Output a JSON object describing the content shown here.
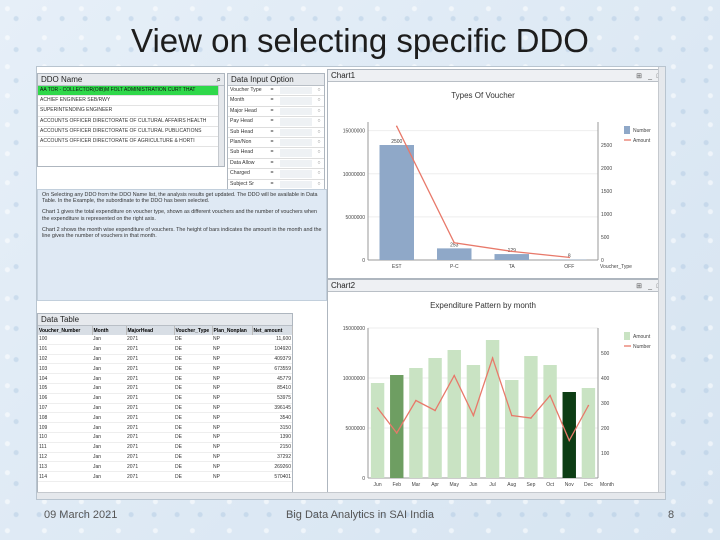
{
  "slide": {
    "title": "View on selecting specific DDO",
    "footer_date": "09 March 2021",
    "footer_center": "Big Data Analytics in SAI India",
    "page_number": "8"
  },
  "ddo_list": {
    "header": "DDO Name",
    "items": [
      "AA TOR - COLLECTOR(OIB)M FOLT ADMINISTRATION CURT THAT",
      "ACHIEF ENGINEER SEB/RWY",
      "SUPERINTENDING ENGINEER",
      "ACCOUNTS OFFICER DIRECTORATE OF CULTURAL AFFAIRS HEALTH",
      "ACCOUNTS OFFICER DIRECTORATE OF CULTURAL PUBLICATIONS",
      "ACCOUNTS OFFICER DIRECTORATE OF AGRICULTURE & HORTI"
    ]
  },
  "data_input": {
    "header": "Data Input Option",
    "rows": [
      {
        "label": "Voucher Type",
        "sep": "="
      },
      {
        "label": "Month",
        "sep": "="
      },
      {
        "label": "Major Head",
        "sep": "="
      },
      {
        "label": "Pay Head",
        "sep": "="
      },
      {
        "label": "Sub Head",
        "sep": "="
      },
      {
        "label": "Plan/Non",
        "sep": "="
      },
      {
        "label": "Sub Head",
        "sep": "="
      },
      {
        "label": "Data Allow",
        "sep": "="
      },
      {
        "label": "Charged",
        "sep": "="
      },
      {
        "label": "Subject Sr",
        "sep": "="
      }
    ]
  },
  "description": {
    "paragraphs": [
      "On Selecting any DDO from the DDO Name list, the analysis results get updated. The DDO will be available in Data Table. In the Example, the subordinate to the DDO has been selected.",
      "Chart 1 gives the total expenditure on voucher type, shown as different vouchers and the number of vouchers when the expenditure is represented on the right axis.",
      "Chart 2 shows the month wise expenditure of vouchers. The height of bars indicates the amount in the month and the line gives the number of vouchers in that month."
    ]
  },
  "data_table": {
    "header": "Data Table",
    "columns": [
      "Voucher_Number",
      "Month",
      "MajorHead",
      "Voucher_Type",
      "Plan_Nonplan",
      "Net_amount"
    ],
    "rows": [
      [
        "100",
        "Jan",
        "2071",
        "DE",
        "NP",
        "11,600"
      ],
      [
        "101",
        "Jan",
        "2071",
        "DE",
        "NP",
        "104920"
      ],
      [
        "102",
        "Jan",
        "2071",
        "DE",
        "NP",
        "409379"
      ],
      [
        "103",
        "Jan",
        "2071",
        "DE",
        "NP",
        "673559"
      ],
      [
        "104",
        "Jan",
        "2071",
        "DE",
        "NP",
        "45779"
      ],
      [
        "105",
        "Jan",
        "2071",
        "DE",
        "NP",
        "85410"
      ],
      [
        "106",
        "Jan",
        "2071",
        "DE",
        "NP",
        "53975"
      ],
      [
        "107",
        "Jan",
        "2071",
        "DE",
        "NP",
        "396145"
      ],
      [
        "108",
        "Jan",
        "2071",
        "DE",
        "NP",
        "3540"
      ],
      [
        "109",
        "Jan",
        "2071",
        "DE",
        "NP",
        "3150"
      ],
      [
        "110",
        "Jan",
        "2071",
        "DE",
        "NP",
        "1390"
      ],
      [
        "111",
        "Jan",
        "2071",
        "DE",
        "NP",
        "2150"
      ],
      [
        "112",
        "Jan",
        "2071",
        "DE",
        "NP",
        "37292"
      ],
      [
        "113",
        "Jan",
        "2071",
        "DE",
        "NP",
        "269260"
      ],
      [
        "114",
        "Jan",
        "2071",
        "DE",
        "NP",
        "570401"
      ]
    ]
  },
  "chart_data": [
    {
      "panel": "Chart1",
      "type": "bar",
      "title": "Types Of Voucher",
      "categories": [
        "EST",
        "P-C",
        "TA",
        "OFF"
      ],
      "series": [
        {
          "name": "Number",
          "kind": "bar",
          "values": [
            2500,
            253,
            129,
            8
          ],
          "color": "#8fa8c8",
          "labels": [
            "2500",
            "253",
            "129",
            "8"
          ]
        },
        {
          "name": "Amount",
          "kind": "line",
          "values": [
            15500000,
            2000000,
            1000000,
            300000
          ],
          "color": "#e8796a"
        }
      ],
      "x_extra_label": "Voucher_Type",
      "ylim_left": [
        0,
        16000000
      ],
      "yticks_left": [
        "0",
        "5000000",
        "10000000",
        "15000000"
      ],
      "ylim_right": [
        0,
        3000
      ],
      "yticks_right": [
        "0",
        "500",
        "1000",
        "1500",
        "2000",
        "2500"
      ]
    },
    {
      "panel": "Chart2",
      "type": "bar",
      "title": "Expenditure Pattern by month",
      "categories": [
        "Jun",
        "Feb",
        "Mar",
        "Apr",
        "May",
        "Jun",
        "Jul",
        "Aug",
        "Sep",
        "Oct",
        "Nov",
        "Dec"
      ],
      "series": [
        {
          "name": "Amount",
          "kind": "bar",
          "values": [
            9500000,
            10300000,
            11000000,
            12000000,
            12800000,
            11300000,
            13800000,
            9800000,
            12200000,
            11300000,
            8600000,
            9000000
          ],
          "color": "#c9e3c3",
          "highlight": {
            "1": "#6e9e62",
            "10": "#0d3d14"
          }
        },
        {
          "name": "Number",
          "kind": "line",
          "values": [
            280,
            180,
            310,
            270,
            410,
            250,
            480,
            250,
            240,
            330,
            150,
            290
          ],
          "color": "#e8796a"
        }
      ],
      "x_extra_label": "Month",
      "ylim_left": [
        0,
        15000000
      ],
      "yticks_left": [
        "0",
        "5000000",
        "10000000",
        "15000000"
      ],
      "ylim_right": [
        0,
        600
      ],
      "yticks_right": [
        "100",
        "200",
        "300",
        "400",
        "500"
      ]
    }
  ]
}
